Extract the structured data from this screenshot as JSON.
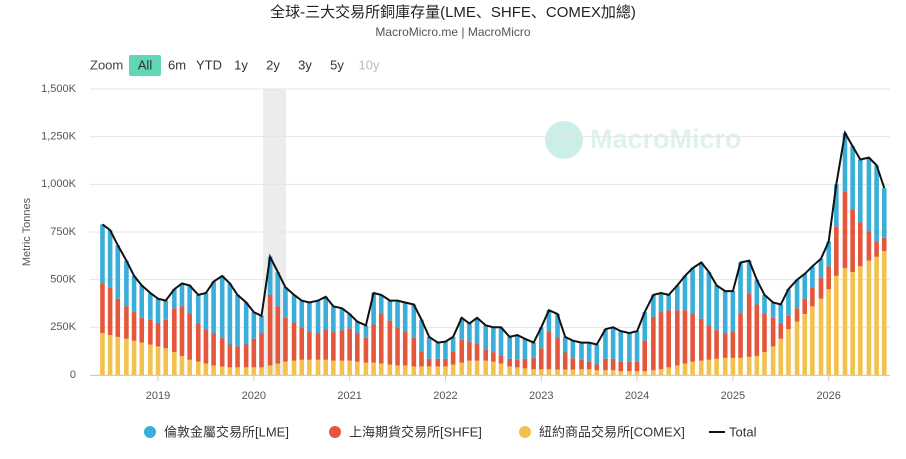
{
  "chart_data": {
    "type": "bar",
    "stacked": true,
    "title": "全球-三大交易所銅庫存量(LME、SHFE、COMEX加總)",
    "subtitle": "MacroMicro.me | MacroMicro",
    "watermark": "MacroMicro",
    "y_label": "Metric Tonnes",
    "x": [
      2018.42,
      2018.5,
      2018.58,
      2018.67,
      2018.75,
      2018.83,
      2018.92,
      2019.0,
      2019.08,
      2019.17,
      2019.25,
      2019.33,
      2019.42,
      2019.5,
      2019.58,
      2019.67,
      2019.75,
      2019.83,
      2019.92,
      2020.0,
      2020.08,
      2020.17,
      2020.25,
      2020.33,
      2020.42,
      2020.5,
      2020.58,
      2020.67,
      2020.75,
      2020.83,
      2020.92,
      2021.0,
      2021.08,
      2021.17,
      2021.25,
      2021.33,
      2021.42,
      2021.5,
      2021.58,
      2021.67,
      2021.75,
      2021.83,
      2021.92,
      2022.0,
      2022.08,
      2022.17,
      2022.25,
      2022.33,
      2022.42,
      2022.5,
      2022.58,
      2022.67,
      2022.75,
      2022.83,
      2022.92,
      2023.0,
      2023.08,
      2023.17,
      2023.25,
      2023.33,
      2023.42,
      2023.5,
      2023.58,
      2023.67,
      2023.75,
      2023.83,
      2023.92,
      2024.0,
      2024.08,
      2024.17,
      2024.25,
      2024.33,
      2024.42,
      2024.5,
      2024.58,
      2024.67,
      2024.75,
      2024.83,
      2024.92,
      2025.0,
      2025.08,
      2025.17,
      2025.25,
      2025.33,
      2025.42,
      2025.5,
      2025.58,
      2025.67,
      2025.75,
      2025.83,
      2025.92,
      2026.0,
      2026.08,
      2026.17,
      2026.25,
      2026.33,
      2026.42,
      2026.5,
      2026.58
    ],
    "series": [
      {
        "name": "紐約商品交易所[COMEX]",
        "color": "#f2c14e",
        "values": [
          220000,
          210000,
          200000,
          190000,
          180000,
          170000,
          160000,
          150000,
          140000,
          120000,
          100000,
          80000,
          70000,
          60000,
          50000,
          45000,
          40000,
          40000,
          40000,
          40000,
          40000,
          50000,
          60000,
          70000,
          75000,
          80000,
          80000,
          80000,
          80000,
          75000,
          75000,
          75000,
          70000,
          65000,
          65000,
          60000,
          55000,
          50000,
          50000,
          45000,
          45000,
          45000,
          45000,
          45000,
          55000,
          65000,
          75000,
          75000,
          75000,
          70000,
          60000,
          45000,
          40000,
          35000,
          30000,
          30000,
          30000,
          28000,
          28000,
          28000,
          30000,
          30000,
          25000,
          25000,
          25000,
          20000,
          20000,
          20000,
          20000,
          25000,
          30000,
          40000,
          50000,
          60000,
          70000,
          75000,
          80000,
          85000,
          90000,
          90000,
          90000,
          95000,
          100000,
          120000,
          150000,
          190000,
          240000,
          280000,
          320000,
          360000,
          400000,
          450000,
          520000,
          560000,
          540000,
          570000,
          600000,
          620000,
          650000
        ]
      },
      {
        "name": "上海期貨交易所[SHFE]",
        "color": "#e4573d",
        "values": [
          260000,
          250000,
          200000,
          170000,
          150000,
          130000,
          130000,
          120000,
          150000,
          230000,
          260000,
          240000,
          200000,
          180000,
          170000,
          150000,
          120000,
          110000,
          120000,
          150000,
          180000,
          370000,
          300000,
          230000,
          200000,
          170000,
          150000,
          140000,
          160000,
          150000,
          160000,
          170000,
          150000,
          130000,
          200000,
          260000,
          230000,
          200000,
          180000,
          150000,
          80000,
          40000,
          40000,
          40000,
          70000,
          120000,
          100000,
          90000,
          60000,
          50000,
          40000,
          40000,
          40000,
          50000,
          60000,
          110000,
          200000,
          170000,
          90000,
          60000,
          50000,
          40000,
          30000,
          60000,
          60000,
          50000,
          50000,
          50000,
          160000,
          280000,
          300000,
          300000,
          290000,
          280000,
          250000,
          220000,
          180000,
          150000,
          130000,
          140000,
          230000,
          330000,
          270000,
          200000,
          150000,
          80000,
          70000,
          70000,
          80000,
          100000,
          110000,
          120000,
          260000,
          400000,
          330000,
          230000,
          150000,
          80000,
          70000
        ]
      },
      {
        "name": "倫敦金屬交易所[LME]",
        "color": "#3aaed8",
        "values": [
          310000,
          300000,
          280000,
          240000,
          190000,
          170000,
          140000,
          130000,
          100000,
          100000,
          120000,
          150000,
          150000,
          190000,
          270000,
          325000,
          320000,
          270000,
          220000,
          140000,
          90000,
          200000,
          180000,
          160000,
          145000,
          140000,
          150000,
          170000,
          170000,
          135000,
          115000,
          75000,
          60000,
          65000,
          165000,
          100000,
          105000,
          140000,
          150000,
          175000,
          165000,
          115000,
          85000,
          90000,
          75000,
          115000,
          95000,
          135000,
          125000,
          130000,
          150000,
          115000,
          130000,
          105000,
          80000,
          110000,
          110000,
          122000,
          82000,
          92000,
          90000,
          100000,
          105000,
          155000,
          165000,
          160000,
          150000,
          160000,
          150000,
          115000,
          100000,
          80000,
          130000,
          180000,
          240000,
          295000,
          280000,
          235000,
          220000,
          210000,
          270000,
          175000,
          130000,
          100000,
          80000,
          100000,
          140000,
          150000,
          130000,
          110000,
          100000,
          130000,
          220000,
          310000,
          330000,
          330000,
          390000,
          400000,
          260000
        ]
      },
      {
        "name": "Total",
        "type": "line",
        "color": "#111111",
        "values": [
          790000,
          760000,
          680000,
          600000,
          520000,
          470000,
          430000,
          400000,
          390000,
          450000,
          480000,
          470000,
          420000,
          430000,
          490000,
          520000,
          480000,
          420000,
          380000,
          330000,
          310000,
          620000,
          540000,
          460000,
          420000,
          390000,
          380000,
          390000,
          410000,
          360000,
          350000,
          320000,
          280000,
          260000,
          430000,
          420000,
          390000,
          390000,
          380000,
          370000,
          290000,
          200000,
          170000,
          175000,
          200000,
          300000,
          270000,
          300000,
          260000,
          250000,
          250000,
          200000,
          210000,
          190000,
          170000,
          250000,
          340000,
          320000,
          200000,
          180000,
          170000,
          170000,
          160000,
          240000,
          250000,
          230000,
          220000,
          230000,
          330000,
          420000,
          430000,
          420000,
          470000,
          520000,
          560000,
          590000,
          540000,
          470000,
          440000,
          440000,
          590000,
          600000,
          500000,
          420000,
          380000,
          370000,
          450000,
          500000,
          530000,
          570000,
          610000,
          700000,
          1000000,
          1270000,
          1200000,
          1130000,
          1140000,
          1100000,
          980000
        ]
      }
    ],
    "legend_order": [
      2,
      1,
      0,
      3
    ],
    "xlim": [
      2018.29,
      2026.64
    ],
    "xticks": [
      2019,
      2020,
      2021,
      2022,
      2023,
      2024,
      2025,
      2026
    ],
    "ylim": [
      0,
      1500000
    ],
    "yticks": [
      0,
      {
        "value": 250000,
        "label": "250K"
      },
      {
        "value": 500000,
        "label": "500K"
      },
      {
        "value": 750000,
        "label": "750K"
      },
      {
        "value": 1000000,
        "label": "1,000K"
      },
      {
        "value": 1250000,
        "label": "1,250K"
      },
      {
        "value": 1500000,
        "label": "1,500K"
      }
    ],
    "grid": true
  },
  "range_selector": {
    "label": "Zoom",
    "buttons": [
      "All",
      "6m",
      "YTD",
      "1y",
      "2y",
      "3y",
      "5y",
      "10y"
    ],
    "active": 0
  }
}
